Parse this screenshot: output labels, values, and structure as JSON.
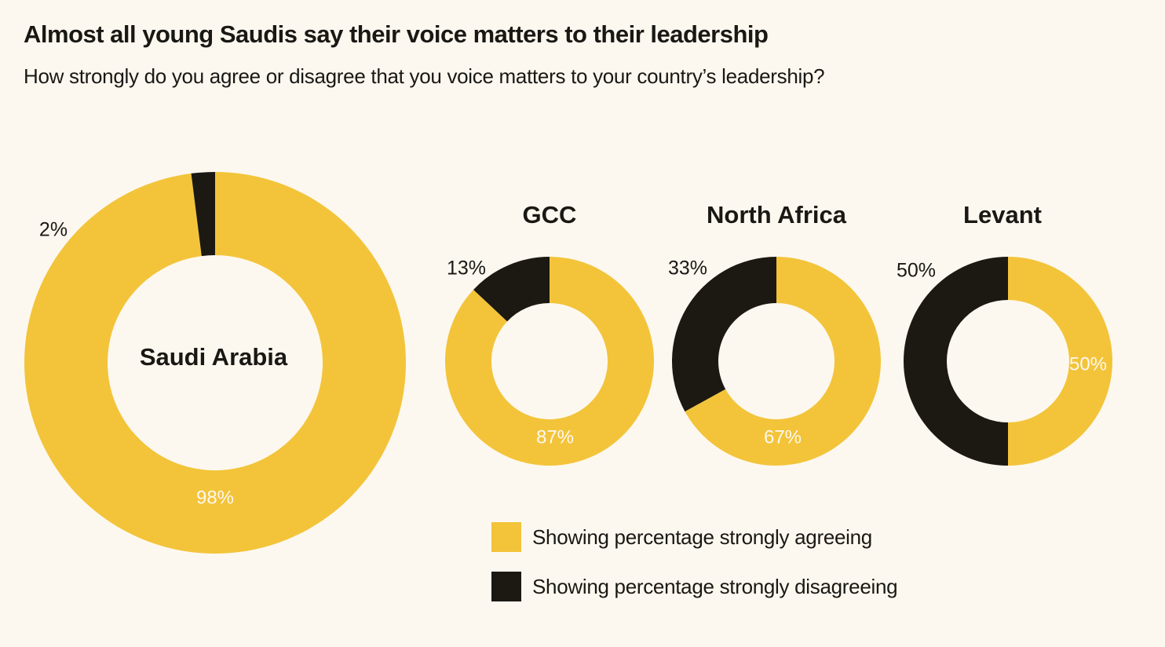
{
  "colors": {
    "agree": "#f3c43a",
    "disagree": "#1c1912",
    "background": "#fdf8ef",
    "hole": "#fdf8ef",
    "text_dark": "#1a1814",
    "text_light": "#fdf8ef"
  },
  "chart_data": {
    "type": "pie",
    "title": "Almost all young Saudis say their voice matters to their leadership",
    "subtitle": "How strongly do you agree or disagree that you voice matters to your country’s leadership?",
    "series": [
      {
        "name": "Saudi Arabia",
        "agree": 98,
        "disagree": 2,
        "agree_label": "98%",
        "disagree_label": "2%"
      },
      {
        "name": "GCC",
        "agree": 87,
        "disagree": 13,
        "agree_label": "87%",
        "disagree_label": "13%"
      },
      {
        "name": "North Africa",
        "agree": 67,
        "disagree": 33,
        "agree_label": "67%",
        "disagree_label": "33%"
      },
      {
        "name": "Levant",
        "agree": 50,
        "disagree": 50,
        "agree_label": "50%",
        "disagree_label": "50%"
      }
    ],
    "legend": [
      {
        "key": "agree",
        "label": "Showing percentage strongly agreeing"
      },
      {
        "key": "disagree",
        "label": "Showing percentage strongly disagreeing"
      }
    ]
  }
}
